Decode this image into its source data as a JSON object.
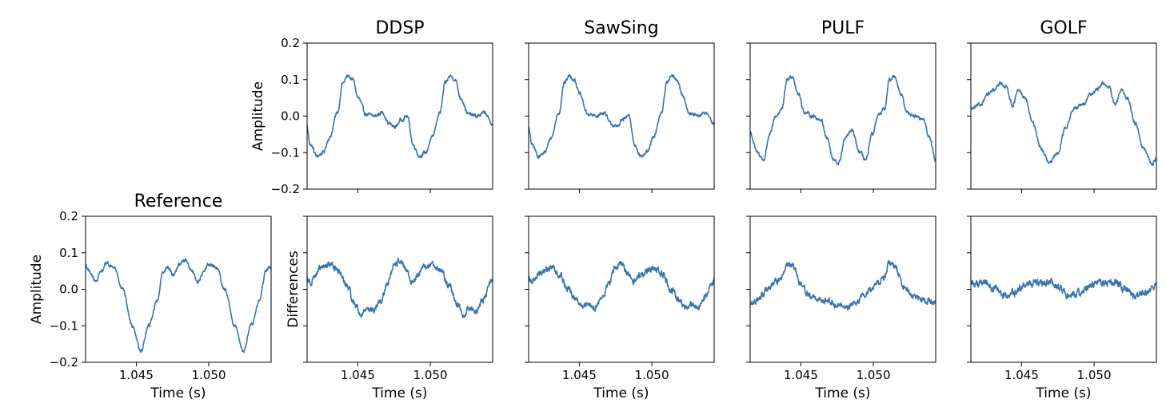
{
  "chart_data": [
    {
      "id": "ddsp-waveform",
      "type": "line",
      "title": "DDSP",
      "ylabel": "Amplitude",
      "xlabel": "",
      "xlim": [
        1.0415,
        1.0543
      ],
      "ylim": [
        -0.2,
        0.2
      ],
      "xticks": [
        1.045,
        1.05
      ],
      "xtick_labels": [],
      "yticks": [
        -0.2,
        -0.1,
        0.0,
        0.1,
        0.2
      ],
      "ytick_labels": [
        "−0.2",
        "−0.1",
        "0.0",
        "0.1",
        "0.2"
      ],
      "period": 0.00707,
      "phase": 1.0436,
      "noise": 0.004,
      "profile": [
        [
          0,
          0.01
        ],
        [
          0.05,
          0.09
        ],
        [
          0.1,
          0.11
        ],
        [
          0.15,
          0.1
        ],
        [
          0.2,
          0.05
        ],
        [
          0.28,
          0.005
        ],
        [
          0.36,
          0.0
        ],
        [
          0.44,
          0.01
        ],
        [
          0.5,
          -0.02
        ],
        [
          0.56,
          -0.03
        ],
        [
          0.62,
          -0.01
        ],
        [
          0.68,
          0.0
        ],
        [
          0.74,
          -0.08
        ],
        [
          0.8,
          -0.11
        ],
        [
          0.86,
          -0.1
        ],
        [
          0.92,
          -0.06
        ],
        [
          1.0,
          0.01
        ]
      ]
    },
    {
      "id": "sawsing-waveform",
      "type": "line",
      "title": "SawSing",
      "ylabel": "",
      "xlabel": "",
      "xlim": [
        1.0415,
        1.0543
      ],
      "ylim": [
        -0.2,
        0.2
      ],
      "xticks": [
        1.045,
        1.05
      ],
      "xtick_labels": [],
      "yticks": [
        -0.2,
        -0.1,
        0.0,
        0.1,
        0.2
      ],
      "ytick_labels": [],
      "period": 0.00707,
      "phase": 1.0436,
      "noise": 0.004,
      "profile": [
        [
          0,
          0.01
        ],
        [
          0.05,
          0.09
        ],
        [
          0.1,
          0.11
        ],
        [
          0.15,
          0.1
        ],
        [
          0.2,
          0.06
        ],
        [
          0.28,
          0.005
        ],
        [
          0.36,
          0.0
        ],
        [
          0.44,
          0.01
        ],
        [
          0.5,
          -0.02
        ],
        [
          0.56,
          -0.03
        ],
        [
          0.62,
          -0.01
        ],
        [
          0.68,
          0.0
        ],
        [
          0.74,
          -0.08
        ],
        [
          0.8,
          -0.11
        ],
        [
          0.86,
          -0.1
        ],
        [
          0.92,
          -0.06
        ],
        [
          1.0,
          0.01
        ]
      ]
    },
    {
      "id": "pulf-waveform",
      "type": "line",
      "title": "PULF",
      "ylabel": "",
      "xlabel": "",
      "xlim": [
        1.0415,
        1.0543
      ],
      "ylim": [
        -0.2,
        0.2
      ],
      "xticks": [
        1.045,
        1.05
      ],
      "xtick_labels": [],
      "yticks": [
        -0.2,
        -0.1,
        0.0,
        0.1,
        0.2
      ],
      "ytick_labels": [],
      "period": 0.00707,
      "phase": 1.0437,
      "noise": 0.004,
      "profile": [
        [
          0,
          0.02
        ],
        [
          0.05,
          0.1
        ],
        [
          0.1,
          0.11
        ],
        [
          0.16,
          0.06
        ],
        [
          0.22,
          0.01
        ],
        [
          0.3,
          0.0
        ],
        [
          0.38,
          -0.01
        ],
        [
          0.44,
          -0.06
        ],
        [
          0.5,
          -0.12
        ],
        [
          0.55,
          -0.13
        ],
        [
          0.62,
          -0.06
        ],
        [
          0.68,
          -0.04
        ],
        [
          0.76,
          -0.1
        ],
        [
          0.82,
          -0.12
        ],
        [
          0.88,
          -0.05
        ],
        [
          0.94,
          0.0
        ],
        [
          1.0,
          0.02
        ]
      ]
    },
    {
      "id": "golf-waveform",
      "type": "line",
      "title": "GOLF",
      "ylabel": "",
      "xlabel": "",
      "xlim": [
        1.0415,
        1.0543
      ],
      "ylim": [
        -0.2,
        0.2
      ],
      "xticks": [
        1.045,
        1.05
      ],
      "xtick_labels": [],
      "yticks": [
        -0.2,
        -0.1,
        0.0,
        0.1,
        0.2
      ],
      "ytick_labels": [],
      "period": 0.00707,
      "phase": 1.0431,
      "noise": 0.004,
      "profile": [
        [
          0,
          0.07
        ],
        [
          0.06,
          0.09
        ],
        [
          0.12,
          0.08
        ],
        [
          0.18,
          0.03
        ],
        [
          0.24,
          0.07
        ],
        [
          0.3,
          0.05
        ],
        [
          0.38,
          -0.02
        ],
        [
          0.46,
          -0.09
        ],
        [
          0.54,
          -0.13
        ],
        [
          0.62,
          -0.1
        ],
        [
          0.7,
          -0.03
        ],
        [
          0.78,
          0.02
        ],
        [
          0.86,
          0.03
        ],
        [
          0.94,
          0.06
        ],
        [
          1.0,
          0.07
        ]
      ]
    },
    {
      "id": "reference-waveform",
      "type": "line",
      "title": "Reference",
      "ylabel": "Amplitude",
      "xlabel": "Time (s)",
      "xlim": [
        1.0415,
        1.0543
      ],
      "ylim": [
        -0.2,
        0.2
      ],
      "xticks": [
        1.045,
        1.05
      ],
      "xtick_labels": [
        "1.045",
        "1.050"
      ],
      "yticks": [
        -0.2,
        -0.1,
        0.0,
        0.1,
        0.2
      ],
      "ytick_labels": [
        "−0.2",
        "−0.1",
        "0.0",
        "0.1",
        "0.2"
      ],
      "period": 0.00707,
      "phase": 1.0429,
      "noise": 0.004,
      "profile": [
        [
          0,
          0.07
        ],
        [
          0.08,
          0.06
        ],
        [
          0.16,
          0.0
        ],
        [
          0.26,
          -0.1
        ],
        [
          0.34,
          -0.17
        ],
        [
          0.42,
          -0.1
        ],
        [
          0.5,
          -0.03
        ],
        [
          0.56,
          0.05
        ],
        [
          0.6,
          0.06
        ],
        [
          0.66,
          0.04
        ],
        [
          0.72,
          0.07
        ],
        [
          0.78,
          0.08
        ],
        [
          0.84,
          0.05
        ],
        [
          0.9,
          0.02
        ],
        [
          0.96,
          0.05
        ],
        [
          1.0,
          0.07
        ]
      ]
    },
    {
      "id": "ddsp-differences",
      "type": "line",
      "title": "",
      "ylabel": "Differences",
      "xlabel": "Time (s)",
      "xlim": [
        1.0415,
        1.0543
      ],
      "ylim": [
        -0.2,
        0.2
      ],
      "xticks": [
        1.045,
        1.05
      ],
      "xtick_labels": [
        "1.045",
        "1.050"
      ],
      "yticks": [
        -0.2,
        -0.1,
        0.0,
        0.1,
        0.2
      ],
      "ytick_labels": [],
      "period": 0.00707,
      "phase": 1.0431,
      "noise": 0.007,
      "profile": [
        [
          0,
          0.07
        ],
        [
          0.08,
          0.05
        ],
        [
          0.16,
          0.01
        ],
        [
          0.24,
          -0.04
        ],
        [
          0.3,
          -0.07
        ],
        [
          0.36,
          -0.05
        ],
        [
          0.42,
          -0.06
        ],
        [
          0.5,
          -0.03
        ],
        [
          0.56,
          0.02
        ],
        [
          0.62,
          0.06
        ],
        [
          0.68,
          0.08
        ],
        [
          0.74,
          0.05
        ],
        [
          0.8,
          0.02
        ],
        [
          0.86,
          0.04
        ],
        [
          0.92,
          0.06
        ],
        [
          1.0,
          0.07
        ]
      ]
    },
    {
      "id": "sawsing-differences",
      "type": "line",
      "title": "",
      "ylabel": "",
      "xlabel": "Time (s)",
      "xlim": [
        1.0415,
        1.0543
      ],
      "ylim": [
        -0.2,
        0.2
      ],
      "xticks": [
        1.045,
        1.05
      ],
      "xtick_labels": [
        "1.045",
        "1.050"
      ],
      "yticks": [
        -0.2,
        -0.1,
        0.0,
        0.1,
        0.2
      ],
      "ytick_labels": [],
      "period": 0.00707,
      "phase": 1.0431,
      "noise": 0.007,
      "profile": [
        [
          0,
          0.06
        ],
        [
          0.08,
          0.04
        ],
        [
          0.16,
          0.0
        ],
        [
          0.24,
          -0.03
        ],
        [
          0.3,
          -0.05
        ],
        [
          0.36,
          -0.04
        ],
        [
          0.42,
          -0.05
        ],
        [
          0.5,
          -0.02
        ],
        [
          0.56,
          0.02
        ],
        [
          0.62,
          0.06
        ],
        [
          0.68,
          0.07
        ],
        [
          0.74,
          0.04
        ],
        [
          0.8,
          0.02
        ],
        [
          0.86,
          0.04
        ],
        [
          0.92,
          0.05
        ],
        [
          1.0,
          0.06
        ]
      ]
    },
    {
      "id": "pulf-differences",
      "type": "line",
      "title": "",
      "ylabel": "",
      "xlabel": "Time (s)",
      "xlim": [
        1.0415,
        1.0543
      ],
      "ylim": [
        -0.2,
        0.2
      ],
      "xticks": [
        1.045,
        1.05
      ],
      "xtick_labels": [
        "1.045",
        "1.050"
      ],
      "yticks": [
        -0.2,
        -0.1,
        0.0,
        0.1,
        0.2
      ],
      "ytick_labels": [],
      "period": 0.00707,
      "phase": 1.0436,
      "noise": 0.007,
      "profile": [
        [
          0,
          0.03
        ],
        [
          0.06,
          0.07
        ],
        [
          0.12,
          0.06
        ],
        [
          0.2,
          0.01
        ],
        [
          0.3,
          -0.02
        ],
        [
          0.42,
          -0.03
        ],
        [
          0.54,
          -0.04
        ],
        [
          0.64,
          -0.05
        ],
        [
          0.72,
          -0.04
        ],
        [
          0.8,
          -0.02
        ],
        [
          0.88,
          0.0
        ],
        [
          0.95,
          0.02
        ],
        [
          1.0,
          0.03
        ]
      ]
    },
    {
      "id": "golf-differences",
      "type": "line",
      "title": "",
      "ylabel": "",
      "xlabel": "Time (s)",
      "xlim": [
        1.0415,
        1.0543
      ],
      "ylim": [
        -0.2,
        0.2
      ],
      "xticks": [
        1.045,
        1.05
      ],
      "xtick_labels": [
        "1.045",
        "1.050"
      ],
      "yticks": [
        -0.2,
        -0.1,
        0.0,
        0.1,
        0.2
      ],
      "ytick_labels": [],
      "period": 0.0045,
      "phase": 1.0418,
      "noise": 0.008,
      "profile": [
        [
          0,
          0.015
        ],
        [
          0.15,
          0.02
        ],
        [
          0.3,
          0.0
        ],
        [
          0.45,
          -0.02
        ],
        [
          0.6,
          -0.01
        ],
        [
          0.75,
          0.01
        ],
        [
          0.9,
          0.02
        ],
        [
          1.0,
          0.015
        ]
      ]
    }
  ],
  "style": {
    "line_color": "#3a74ac",
    "frame_color": "#000000",
    "background": "#ffffff"
  }
}
